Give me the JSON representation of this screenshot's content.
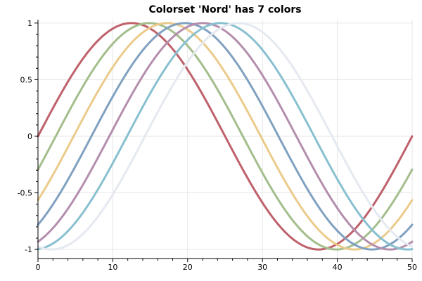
{
  "chart_data": {
    "type": "line",
    "title": "Colorset 'Nord' has 7 colors",
    "xlabel": "",
    "ylabel": "",
    "xlim": [
      0,
      50
    ],
    "ylim": [
      -1.08,
      1.03
    ],
    "grid": true,
    "legend": "none",
    "x_ticks": [
      0,
      10,
      20,
      30,
      40,
      50
    ],
    "x_tick_labels": [
      "0",
      "10",
      "20",
      "30",
      "40",
      "50"
    ],
    "y_ticks": [
      1,
      0.5,
      0,
      -0.5,
      -1
    ],
    "y_tick_labels": [
      "1",
      "0.5",
      "0",
      "-0.5",
      "-1"
    ],
    "function": "y = sin(2*pi*x/50 - phase)",
    "series": [
      {
        "color": "#bf616a",
        "phase_deg": 0,
        "x": [
          0,
          5,
          10,
          12.5,
          15,
          20,
          25,
          30,
          35,
          37.5,
          40,
          45,
          50
        ],
        "y": [
          0,
          0.59,
          0.95,
          1,
          0.95,
          0.59,
          0,
          -0.59,
          -0.95,
          -1,
          -0.95,
          -0.59,
          0
        ]
      },
      {
        "color": "#a3be8c",
        "phase_deg": 17.1,
        "x": [
          0,
          5,
          10,
          14.9,
          20,
          25,
          30,
          39.9,
          45,
          50
        ],
        "y": [
          -0.29,
          0.33,
          0.82,
          1,
          0.79,
          0.29,
          -0.33,
          -1,
          -0.79,
          -0.29
        ]
      },
      {
        "color": "#ebcb8b",
        "phase_deg": 34.3,
        "x": [
          0,
          5,
          10,
          17.3,
          20,
          25,
          30,
          42.3,
          45,
          50
        ],
        "y": [
          -0.56,
          0.03,
          0.62,
          1,
          0.96,
          0.56,
          -0.03,
          -1,
          -0.96,
          -0.56
        ]
      },
      {
        "color": "#81a1c1",
        "phase_deg": 51.4,
        "x": [
          0,
          5,
          10,
          19.6,
          25,
          30,
          35,
          44.6,
          50
        ],
        "y": [
          -0.78,
          -0.26,
          0.35,
          1,
          0.78,
          0.26,
          -0.35,
          -1,
          -0.78
        ]
      },
      {
        "color": "#b48ead",
        "phase_deg": 68.6,
        "x": [
          0,
          5,
          10,
          22,
          25,
          30,
          35,
          47,
          50
        ],
        "y": [
          -0.93,
          -0.53,
          0.05,
          1,
          0.93,
          0.53,
          -0.05,
          -1,
          -0.93
        ]
      },
      {
        "color": "#88c0d0",
        "phase_deg": 85.7,
        "x": [
          0,
          2,
          5,
          10,
          24.4,
          30,
          35,
          49.4,
          50
        ],
        "y": [
          -1,
          -0.99,
          -0.75,
          -0.25,
          1,
          0.75,
          0.25,
          -1,
          -1
        ]
      },
      {
        "color": "#e5e9f0",
        "phase_deg": 102.9,
        "x": [
          1.8,
          5,
          10,
          20,
          26.8,
          30,
          35,
          40,
          50
        ],
        "y": [
          -1,
          -0.93,
          -0.5,
          0.66,
          1,
          0.93,
          0.5,
          -0.1,
          -0.98
        ]
      }
    ]
  }
}
